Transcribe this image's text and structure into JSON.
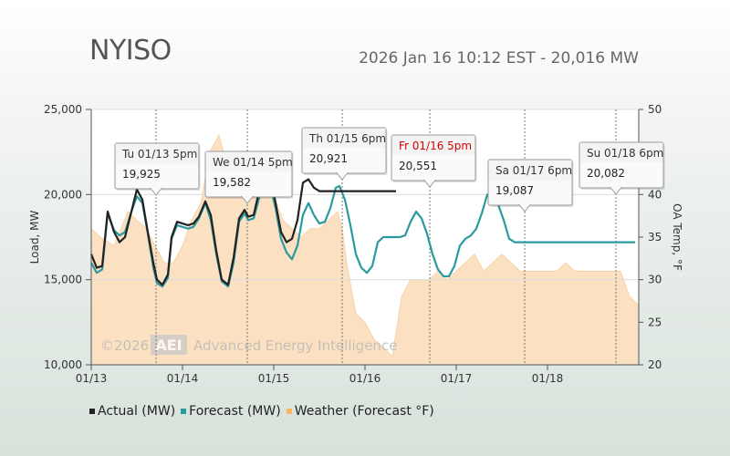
{
  "header": {
    "title": "NYISO",
    "subtitle": "2026 Jan 16 10:12 EST - 20,016 MW"
  },
  "watermark": {
    "year": "©2026",
    "logo": "AEI",
    "company": "Advanced Energy Intelligence"
  },
  "legend": [
    {
      "label": "Actual (MW)",
      "color": "#222222"
    },
    {
      "label": "Forecast (MW)",
      "color": "#2a9aa0"
    },
    {
      "label": "Weather (Forecast °F)",
      "color": "#f6b760"
    }
  ],
  "chart_data": {
    "type": "line",
    "title": "NYISO",
    "xlabel": "",
    "ylabel": "Load, MW",
    "y2label": "OA Temp, °F",
    "xlim": [
      0,
      6
    ],
    "ylim": [
      10000,
      25000
    ],
    "y2lim": [
      20,
      50
    ],
    "x_tick_labels": [
      "01/13",
      "01/14",
      "01/15",
      "01/16",
      "01/17",
      "01/18"
    ],
    "x_ticks": [
      0,
      1,
      2,
      3,
      4,
      5
    ],
    "y_ticks": [
      10000,
      15000,
      20000,
      25000
    ],
    "y_tick_labels": [
      "10,000",
      "15,000",
      "20,000",
      "25,000"
    ],
    "y2_ticks": [
      20,
      25,
      30,
      35,
      40,
      45,
      50
    ],
    "y2_tick_labels": [
      "20",
      "25",
      "30",
      "35",
      "40",
      "45",
      "50"
    ],
    "grid": "horizontal",
    "legend_position": "bottom-left",
    "series": [
      {
        "name": "Actual (MW)",
        "color": "#222222",
        "x": [
          0,
          0.06,
          0.12,
          0.18,
          0.25,
          0.31,
          0.37,
          0.44,
          0.5,
          0.56,
          0.62,
          0.68,
          0.72,
          0.78,
          0.84,
          0.88,
          0.94,
          1.0,
          1.06,
          1.12,
          1.18,
          1.25,
          1.31,
          1.37,
          1.43,
          1.5,
          1.56,
          1.62,
          1.68,
          1.72,
          1.78,
          1.84,
          1.9,
          1.96,
          2.02,
          2.08,
          2.14,
          2.2,
          2.26,
          2.32,
          2.38,
          2.44,
          2.5,
          2.56,
          2.62,
          2.68,
          2.72,
          2.78,
          2.84,
          2.9,
          2.96,
          3.02,
          3.08,
          3.14,
          3.2,
          3.25,
          3.3,
          3.34
        ],
        "values": [
          16500,
          15700,
          15800,
          19000,
          17800,
          17200,
          17500,
          19000,
          20300,
          19700,
          17800,
          16000,
          15000,
          14700,
          15300,
          17500,
          18400,
          18300,
          18200,
          18300,
          18700,
          19600,
          18800,
          16700,
          15000,
          14700,
          16300,
          18600,
          19100,
          18700,
          18800,
          20200,
          21400,
          21200,
          19500,
          17800,
          17200,
          17400,
          18500,
          20700,
          20900,
          20400,
          20200,
          20200,
          20200,
          20200,
          20200,
          20200,
          20200,
          20200,
          20200,
          20200,
          20200,
          20200,
          20200,
          20200,
          20200,
          20200
        ]
      },
      {
        "name": "Forecast (MW)",
        "color": "#2a9aa0",
        "x": [
          0,
          0.06,
          0.12,
          0.18,
          0.25,
          0.31,
          0.37,
          0.44,
          0.5,
          0.56,
          0.62,
          0.68,
          0.72,
          0.78,
          0.84,
          0.88,
          0.94,
          1.0,
          1.06,
          1.12,
          1.18,
          1.25,
          1.31,
          1.37,
          1.43,
          1.5,
          1.56,
          1.62,
          1.68,
          1.72,
          1.78,
          1.84,
          1.9,
          1.96,
          2.02,
          2.08,
          2.14,
          2.2,
          2.26,
          2.32,
          2.38,
          2.44,
          2.5,
          2.56,
          2.62,
          2.68,
          2.72,
          2.78,
          2.84,
          2.9,
          2.96,
          3.02,
          3.08,
          3.14,
          3.2,
          3.26,
          3.32,
          3.38,
          3.44,
          3.5,
          3.56,
          3.62,
          3.68,
          3.74,
          3.8,
          3.86,
          3.92,
          3.98,
          4.04,
          4.1,
          4.16,
          4.22,
          4.28,
          4.34,
          4.4,
          4.46,
          4.52,
          4.58,
          4.64,
          4.7,
          4.76,
          4.82,
          4.88,
          4.94,
          5.0,
          5.06,
          5.12,
          5.18,
          5.24,
          5.3,
          5.36,
          5.42,
          5.48,
          5.54,
          5.6,
          5.66,
          5.72,
          5.78,
          5.84,
          5.9,
          5.96
        ],
        "values": [
          16000,
          15400,
          15600,
          18900,
          17900,
          17600,
          17800,
          19000,
          19900,
          19500,
          17700,
          15700,
          14800,
          14600,
          15100,
          17400,
          18200,
          18100,
          18000,
          18100,
          18600,
          19500,
          18500,
          16500,
          14900,
          14600,
          16000,
          18400,
          18900,
          18500,
          18600,
          19800,
          20900,
          20500,
          19200,
          17400,
          16600,
          16200,
          17000,
          18800,
          19500,
          18800,
          18300,
          18400,
          19200,
          20400,
          20500,
          19700,
          18200,
          16500,
          15700,
          15400,
          15800,
          17200,
          17500,
          17500,
          17500,
          17500,
          17600,
          18400,
          19000,
          18600,
          17700,
          16500,
          15600,
          15200,
          15200,
          15800,
          17000,
          17400,
          17600,
          18000,
          18900,
          20000,
          20100,
          19400,
          18500,
          17400,
          17200,
          17200,
          17200,
          17200,
          17200,
          17200,
          17200,
          17200,
          17200,
          17200,
          17200,
          17200,
          17200,
          17200,
          17200,
          17200,
          17200,
          17200,
          17200,
          17200,
          17200,
          17200,
          17200
        ]
      },
      {
        "name": "Weather (Forecast °F)",
        "color": "#f6b760",
        "x": [
          0,
          0.1,
          0.25,
          0.4,
          0.5,
          0.6,
          0.7,
          0.8,
          0.9,
          1.0,
          1.1,
          1.2,
          1.3,
          1.4,
          1.5,
          1.6,
          1.7,
          1.8,
          1.9,
          2.0,
          2.1,
          2.2,
          2.3,
          2.4,
          2.5,
          2.6,
          2.7,
          2.75,
          2.8,
          2.9,
          3.0,
          3.1,
          3.2,
          3.3,
          3.4,
          3.5,
          3.6,
          3.7,
          3.8,
          3.9,
          4.0,
          4.1,
          4.2,
          4.3,
          4.4,
          4.5,
          4.6,
          4.7,
          4.8,
          4.9,
          5.0,
          5.1,
          5.2,
          5.3,
          5.4,
          5.5,
          5.6,
          5.7,
          5.8,
          5.9,
          6.0
        ],
        "values": [
          36,
          35,
          34,
          38,
          37,
          36,
          34,
          32,
          32,
          34,
          37,
          39,
          45,
          47,
          43,
          41,
          42,
          42,
          41,
          40,
          37,
          36,
          35,
          36,
          36,
          37,
          38,
          36,
          32,
          26,
          25,
          23,
          22,
          21,
          28,
          30,
          30,
          30,
          31,
          30,
          31,
          32,
          33,
          31,
          32,
          33,
          32,
          31,
          31,
          31,
          31,
          31,
          32,
          31,
          31,
          31,
          31,
          31,
          31,
          28,
          27
        ]
      }
    ],
    "annotations": [
      {
        "label": "Tu 01/13 5pm",
        "value": "19,925",
        "x": 0.71
      },
      {
        "label": "We 01/14 5pm",
        "value": "19,582",
        "x": 1.71
      },
      {
        "label": "Th 01/15 6pm",
        "value": "20,921",
        "x": 2.75
      },
      {
        "label": "Fr 01/16 5pm",
        "value": "20,551",
        "x": 3.71,
        "highlight": true
      },
      {
        "label": "Sa 01/17 6pm",
        "value": "19,087",
        "x": 4.75
      },
      {
        "label": "Su 01/18 6pm",
        "value": "20,082",
        "x": 5.75
      }
    ]
  }
}
